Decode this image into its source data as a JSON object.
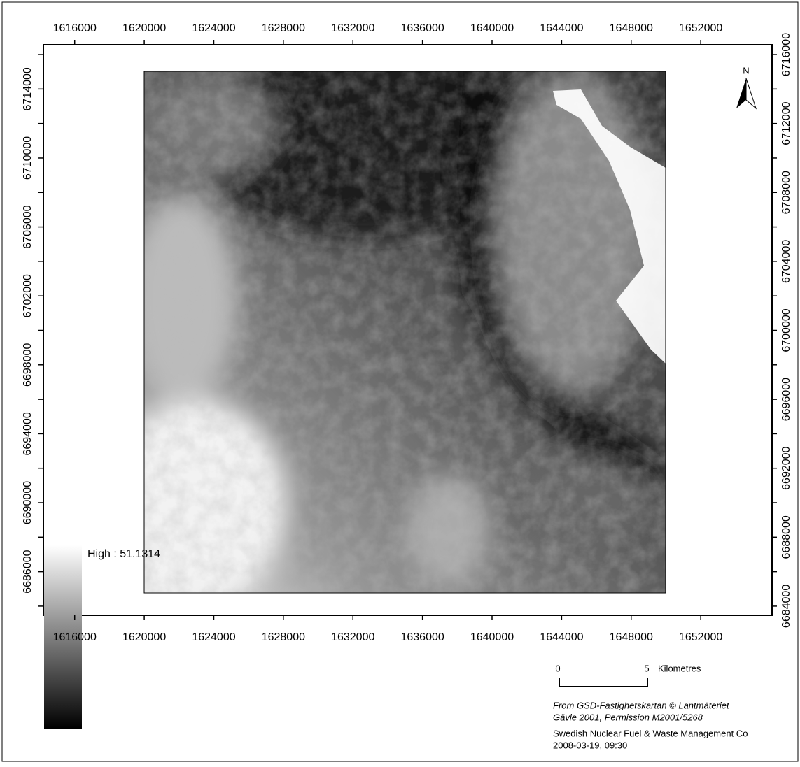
{
  "map": {
    "xlim": [
      1614200,
      1656100
    ],
    "ylim": [
      6683470,
      6716570
    ],
    "xticks": [
      1616000,
      1620000,
      1624000,
      1628000,
      1632000,
      1636000,
      1640000,
      1644000,
      1648000,
      1652000
    ],
    "yticks": [
      6684000,
      6686000,
      6688000,
      6690000,
      6692000,
      6694000,
      6696000,
      6698000,
      6700000,
      6702000,
      6704000,
      6706000,
      6708000,
      6710000,
      6712000,
      6714000,
      6716000
    ],
    "north_label": "N",
    "legend": {
      "label": "High : 51.1314"
    },
    "scale_bar": {
      "labels": [
        "0",
        "5"
      ],
      "unit": "Kilometres"
    },
    "credits": [
      "From GSD-Fastighetskartan © Lantmäteriet",
      "Gävle 2001, Permission M2001/5268"
    ],
    "producer": [
      "Swedish Nuclear Fuel & Waste Management Co",
      "2008-03-19, 09:30"
    ]
  }
}
